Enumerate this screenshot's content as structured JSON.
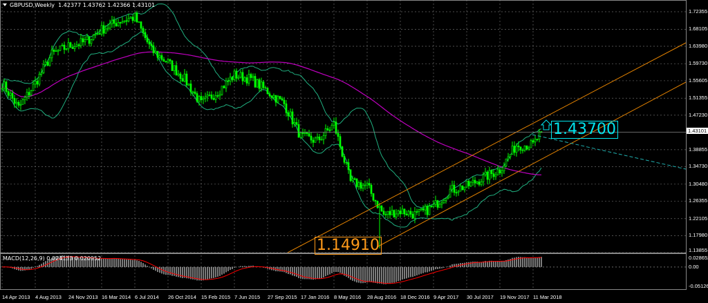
{
  "header": {
    "symbol": "GBPUSD,Weekly",
    "ohlc": "1.42377 1.43762 1.42366 1.43101"
  },
  "macd": {
    "label": "MACD(12,26,9) 0.024133 0.020952",
    "axis": [
      "0.028652",
      "0.00",
      "-0.051265"
    ],
    "range": [
      -0.051265,
      0.028652
    ]
  },
  "price_axis": [
    "1.72355",
    "1.68105",
    "1.63980",
    "1.59730",
    "1.55605",
    "1.51355",
    "1.47230",
    "1.38855",
    "1.34730",
    "1.30480",
    "1.26355",
    "1.22105",
    "1.17980",
    "1.13855"
  ],
  "current_price": "1.43101",
  "annotations": {
    "high_label": "1.43700",
    "low_label": "1.14910"
  },
  "date_axis": [
    "14 Apr 2013",
    "4 Aug 2013",
    "24 Nov 2013",
    "16 Mar 2014",
    "6 Jul 2014",
    "26 Oct 2014",
    "15 Feb 2015",
    "7 Jun 2015",
    "27 Sep 2015",
    "17 Jan 2016",
    "8 May 2016",
    "28 Aug 2016",
    "18 Dec 2016",
    "9 Apr 2017",
    "30 Jul 2017",
    "19 Nov 2017",
    "11 Mar 2018"
  ],
  "colors": {
    "background": "#000000",
    "candles": "#00ff00",
    "bands": "#20b080",
    "ma": "#c000c0",
    "channel": "#e08000",
    "trend": "#20b0b0",
    "macd_hist": "#c0c0c0",
    "macd_signal": "#ff0000",
    "grid": "#6a6a6a"
  },
  "chart_data": {
    "type": "candlestick",
    "symbol": "GBPUSD",
    "timeframe": "Weekly",
    "ylim": [
      1.13855,
      1.72355
    ],
    "grid": true,
    "indicators": [
      "Bollinger Bands",
      "Moving Average",
      "MACD(12,26,9)"
    ],
    "approx_closes": [
      [
        "2013-04-14",
        1.55
      ],
      [
        "2013-06-09",
        1.49
      ],
      [
        "2013-08-04",
        1.55
      ],
      [
        "2013-09-29",
        1.62
      ],
      [
        "2013-11-24",
        1.64
      ],
      [
        "2014-01-19",
        1.65
      ],
      [
        "2014-03-16",
        1.68
      ],
      [
        "2014-05-11",
        1.7
      ],
      [
        "2014-07-06",
        1.71
      ],
      [
        "2014-08-31",
        1.63
      ],
      [
        "2014-10-26",
        1.6
      ],
      [
        "2014-12-21",
        1.56
      ],
      [
        "2015-02-15",
        1.5
      ],
      [
        "2015-04-12",
        1.53
      ],
      [
        "2015-06-07",
        1.57
      ],
      [
        "2015-08-02",
        1.56
      ],
      [
        "2015-09-27",
        1.53
      ],
      [
        "2015-11-22",
        1.5
      ],
      [
        "2016-01-17",
        1.42
      ],
      [
        "2016-03-13",
        1.41
      ],
      [
        "2016-05-08",
        1.45
      ],
      [
        "2016-07-03",
        1.31
      ],
      [
        "2016-08-28",
        1.3
      ],
      [
        "2016-10-23",
        1.23
      ],
      [
        "2016-12-18",
        1.24
      ],
      [
        "2017-02-12",
        1.23
      ],
      [
        "2017-04-09",
        1.25
      ],
      [
        "2017-06-04",
        1.29
      ],
      [
        "2017-07-30",
        1.3
      ],
      [
        "2017-09-24",
        1.32
      ],
      [
        "2017-11-19",
        1.34
      ],
      [
        "2018-01-14",
        1.4
      ],
      [
        "2018-03-11",
        1.4
      ],
      [
        "2018-04-08",
        1.431
      ]
    ],
    "spike_low": [
      "2016-10-07",
      1.1491
    ],
    "channel_lower_start": [
      "2016-10-07",
      1.1491
    ],
    "channel_upper_touch": [
      "2018-04-08",
      1.437
    ]
  }
}
